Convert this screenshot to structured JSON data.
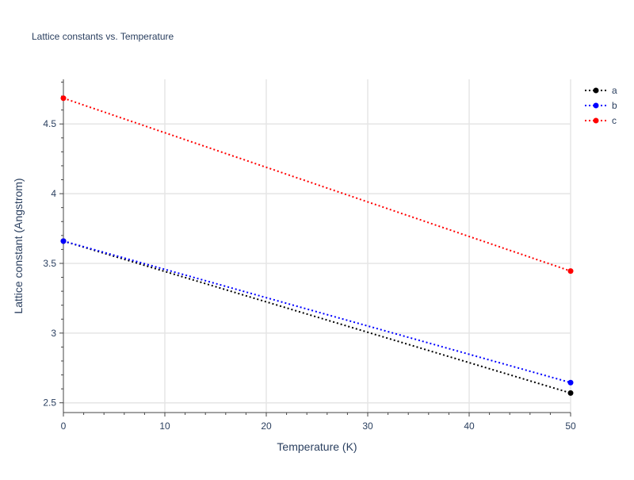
{
  "chart_data": {
    "type": "line",
    "title": "Lattice constants vs. Temperature",
    "xlabel": "Temperature (K)",
    "ylabel": "Lattice constant (Angstrom)",
    "xlim": [
      0,
      50
    ],
    "ylim": [
      2.43,
      4.82
    ],
    "x_ticks": [
      0,
      10,
      20,
      30,
      40,
      50
    ],
    "y_ticks": [
      2.5,
      3,
      3.5,
      4,
      4.5
    ],
    "x_tick_labels": [
      "0",
      "10",
      "20",
      "30",
      "40",
      "50"
    ],
    "y_tick_labels": [
      "2.5",
      "3",
      "3.5",
      "4",
      "4.5"
    ],
    "grid": true,
    "legend_position": "top-right",
    "line_style": "dotted",
    "markers": "endpoints",
    "series": [
      {
        "name": "a",
        "color": "#000000",
        "x": [
          0,
          50
        ],
        "y": [
          3.66,
          2.57
        ]
      },
      {
        "name": "b",
        "color": "#0000ff",
        "x": [
          0,
          50
        ],
        "y": [
          3.66,
          2.645
        ]
      },
      {
        "name": "c",
        "color": "#ff0000",
        "x": [
          0,
          50
        ],
        "y": [
          4.685,
          3.445
        ]
      }
    ]
  }
}
